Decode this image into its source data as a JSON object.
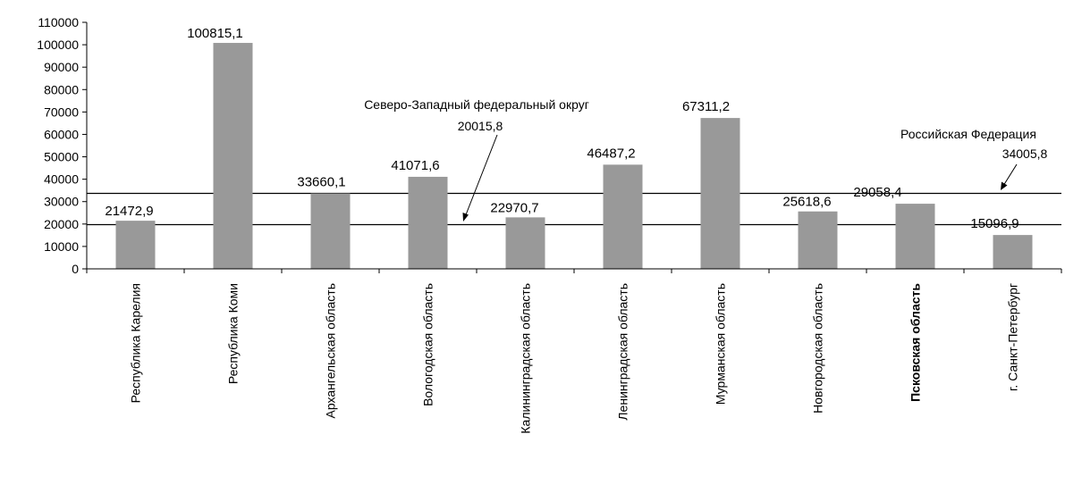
{
  "chart_data": {
    "type": "bar",
    "categories": [
      "Республика Карелия",
      "Республика Коми",
      "Архангельская область",
      "Вологодская область",
      "Калининградская область",
      "Ленинградская область",
      "Мурманская область",
      "Новгородская область",
      "Псковская область",
      "г. Санкт-Петербург"
    ],
    "highlighted_category": "Псковская область",
    "values": [
      21472.9,
      100815.1,
      33660.1,
      41071.6,
      22970.7,
      46487.2,
      67311.2,
      25618.6,
      29058.4,
      15096.9
    ],
    "value_labels": [
      "21472,9",
      "100815,1",
      "33660,1",
      "41071,6",
      "22970,7",
      "46487,2",
      "67311,2",
      "25618,6",
      "29058,4",
      "15096,9"
    ],
    "ylim": [
      0,
      110000
    ],
    "yticks": [
      0,
      10000,
      20000,
      30000,
      40000,
      50000,
      60000,
      70000,
      80000,
      90000,
      100000,
      110000
    ],
    "ytick_labels": [
      "0",
      "10000",
      "20000",
      "30000",
      "40000",
      "50000",
      "60000",
      "70000",
      "80000",
      "90000",
      "100000",
      "110000"
    ],
    "bar_color": "#999999",
    "reference_lines": [
      {
        "label": "Северо-Западный федеральный округ",
        "value": 20015.8,
        "value_label": "20015,8"
      },
      {
        "label": "Российская Федерация",
        "value": 34005.8,
        "value_label": "34005,8"
      }
    ],
    "title": "",
    "xlabel": "",
    "ylabel": "",
    "grid": false,
    "legend": "none"
  }
}
